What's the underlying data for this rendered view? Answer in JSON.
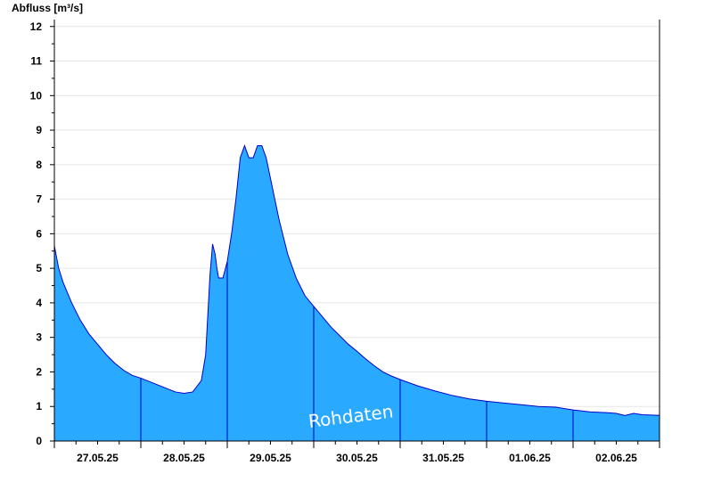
{
  "chart_data": {
    "type": "area",
    "ylabel": "Abfluss [m³/s]",
    "xlabel": "",
    "ylim": [
      0,
      12.2
    ],
    "yticks": [
      0,
      1,
      2,
      3,
      4,
      5,
      6,
      7,
      8,
      9,
      10,
      11,
      12
    ],
    "xlim": [
      0,
      7
    ],
    "day_boundaries": [
      1,
      2,
      3,
      4,
      5,
      6
    ],
    "xtick_labels": [
      {
        "x": 0.5,
        "label": "27.05.25"
      },
      {
        "x": 1.5,
        "label": "28.05.25"
      },
      {
        "x": 2.5,
        "label": "29.05.25"
      },
      {
        "x": 3.5,
        "label": "30.05.25"
      },
      {
        "x": 4.5,
        "label": "31.05.25"
      },
      {
        "x": 5.5,
        "label": "01.06.25"
      },
      {
        "x": 6.5,
        "label": "02.06.25"
      }
    ],
    "annotation": "Rohdaten",
    "grid": true,
    "colors": {
      "fill": "#29a9ff",
      "line": "#0000cc",
      "grid": "#e6e6e6",
      "axis": "#000000"
    },
    "series": [
      {
        "x": [
          0,
          0.05,
          0.1,
          0.15,
          0.2,
          0.3,
          0.4,
          0.5,
          0.6,
          0.7,
          0.8,
          0.9,
          1.0,
          1.1,
          1.2,
          1.3,
          1.4,
          1.5,
          1.6,
          1.7,
          1.75,
          1.8,
          1.83,
          1.86,
          1.88,
          1.9,
          1.95,
          2.0,
          2.05,
          2.1,
          2.15,
          2.2,
          2.25,
          2.3,
          2.35,
          2.4,
          2.45,
          2.5,
          2.55,
          2.6,
          2.65,
          2.7,
          2.8,
          2.9,
          3.0,
          3.1,
          3.2,
          3.3,
          3.4,
          3.5,
          3.6,
          3.7,
          3.8,
          3.9,
          4.0,
          4.2,
          4.4,
          4.6,
          4.8,
          5.0,
          5.2,
          5.4,
          5.6,
          5.8,
          6.0,
          6.2,
          6.4,
          6.5,
          6.6,
          6.7,
          6.8,
          7.0
        ],
        "y": [
          5.65,
          5.0,
          4.6,
          4.3,
          4.0,
          3.5,
          3.1,
          2.8,
          2.5,
          2.25,
          2.05,
          1.9,
          1.82,
          1.72,
          1.62,
          1.52,
          1.42,
          1.38,
          1.42,
          1.75,
          2.5,
          4.8,
          5.7,
          5.4,
          5.0,
          4.72,
          4.72,
          5.2,
          6.0,
          7.0,
          8.2,
          8.55,
          8.2,
          8.2,
          8.55,
          8.55,
          8.2,
          7.6,
          7.0,
          6.4,
          5.9,
          5.4,
          4.7,
          4.2,
          3.9,
          3.6,
          3.3,
          3.05,
          2.8,
          2.6,
          2.38,
          2.18,
          2.0,
          1.88,
          1.78,
          1.6,
          1.45,
          1.32,
          1.22,
          1.15,
          1.1,
          1.05,
          1.0,
          0.98,
          0.9,
          0.84,
          0.82,
          0.8,
          0.74,
          0.8,
          0.76,
          0.74
        ]
      }
    ]
  }
}
